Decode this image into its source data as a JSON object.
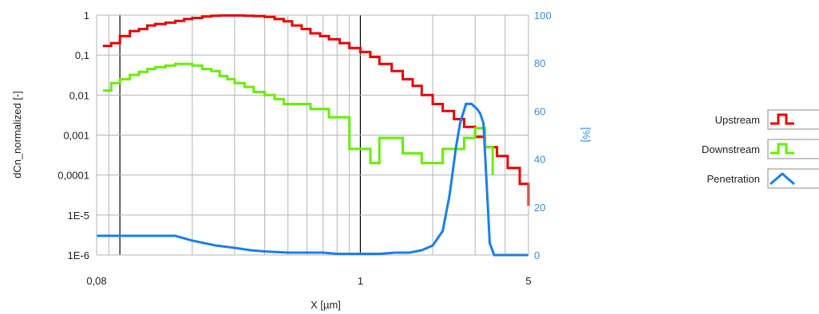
{
  "chart_data": {
    "type": "line",
    "xlabel": "X [µm]",
    "ylabel": "dCn_normalized [-]",
    "y2label": "[%]",
    "xscale": "log",
    "yscale": "log",
    "xlim": [
      0.08,
      5
    ],
    "ylim": [
      1e-06,
      1
    ],
    "y2lim": [
      0,
      100
    ],
    "grid": true,
    "legend_position": "right",
    "x_tick_labels": [
      "0,08",
      "1",
      "5"
    ],
    "y_tick_labels": [
      "1E-6",
      "1E-5",
      "0,0001",
      "0,001",
      "0,01",
      "0,1",
      "1"
    ],
    "y2_tick_labels": [
      "0",
      "20",
      "40",
      "60",
      "80",
      "100"
    ],
    "series": [
      {
        "name": "Upstream",
        "color": "#e60000",
        "axis": "left",
        "step": true,
        "x": [
          0.085,
          0.092,
          0.1,
          0.11,
          0.12,
          0.13,
          0.14,
          0.155,
          0.17,
          0.185,
          0.2,
          0.22,
          0.24,
          0.26,
          0.28,
          0.3,
          0.33,
          0.36,
          0.4,
          0.44,
          0.48,
          0.52,
          0.57,
          0.62,
          0.68,
          0.74,
          0.82,
          0.9,
          1.0,
          1.1,
          1.2,
          1.35,
          1.5,
          1.65,
          1.8,
          2.0,
          2.2,
          2.45,
          2.7,
          3.0,
          3.3,
          3.7,
          4.1,
          4.6,
          5.0
        ],
        "y": [
          0.17,
          0.2,
          0.3,
          0.4,
          0.45,
          0.55,
          0.6,
          0.65,
          0.72,
          0.8,
          0.85,
          0.92,
          0.97,
          0.98,
          0.98,
          0.98,
          0.97,
          0.95,
          0.9,
          0.8,
          0.7,
          0.55,
          0.45,
          0.35,
          0.3,
          0.25,
          0.2,
          0.15,
          0.12,
          0.09,
          0.06,
          0.04,
          0.025,
          0.017,
          0.01,
          0.006,
          0.004,
          0.0025,
          0.0016,
          0.0009,
          0.0005,
          0.0003,
          0.00015,
          6e-05,
          1.7e-05
        ]
      },
      {
        "name": "Downstream",
        "color": "#66ee00",
        "axis": "left",
        "step": true,
        "x": [
          0.085,
          0.092,
          0.1,
          0.11,
          0.12,
          0.13,
          0.14,
          0.155,
          0.17,
          0.185,
          0.2,
          0.22,
          0.24,
          0.26,
          0.28,
          0.3,
          0.33,
          0.36,
          0.4,
          0.44,
          0.48,
          0.52,
          0.57,
          0.62,
          0.68,
          0.74,
          0.82,
          0.9,
          1.0,
          1.1,
          1.2,
          1.35,
          1.5,
          1.65,
          1.8,
          2.0,
          2.2,
          2.45,
          2.7,
          3.0,
          3.3,
          3.55
        ],
        "y": [
          0.013,
          0.02,
          0.025,
          0.032,
          0.038,
          0.045,
          0.05,
          0.055,
          0.06,
          0.06,
          0.055,
          0.045,
          0.04,
          0.03,
          0.025,
          0.02,
          0.016,
          0.012,
          0.01,
          0.008,
          0.006,
          0.006,
          0.006,
          0.0045,
          0.0045,
          0.0028,
          0.0028,
          0.00045,
          0.00045,
          0.0002,
          0.00085,
          0.00085,
          0.00035,
          0.00035,
          0.0002,
          0.0002,
          0.00045,
          0.00045,
          0.00085,
          0.0015,
          0.0005,
          0.0001
        ]
      },
      {
        "name": "Penetration",
        "color": "#1a7fe8",
        "axis": "right",
        "step": false,
        "x": [
          0.08,
          0.1,
          0.13,
          0.17,
          0.2,
          0.25,
          0.3,
          0.35,
          0.4,
          0.5,
          0.6,
          0.7,
          0.8,
          1.0,
          1.2,
          1.4,
          1.6,
          1.8,
          2.0,
          2.2,
          2.35,
          2.5,
          2.6,
          2.75,
          2.9,
          3.05,
          3.15,
          3.25,
          3.35,
          3.45,
          3.6,
          3.8,
          4.0,
          5.0
        ],
        "y": [
          8,
          8,
          8,
          8,
          6,
          4,
          3,
          2,
          1.5,
          1,
          1,
          1,
          0.5,
          0.5,
          0.5,
          1,
          1,
          2,
          4,
          10,
          25,
          45,
          55,
          63,
          63,
          61,
          59,
          55,
          30,
          5,
          0,
          0,
          0,
          0
        ]
      }
    ]
  }
}
